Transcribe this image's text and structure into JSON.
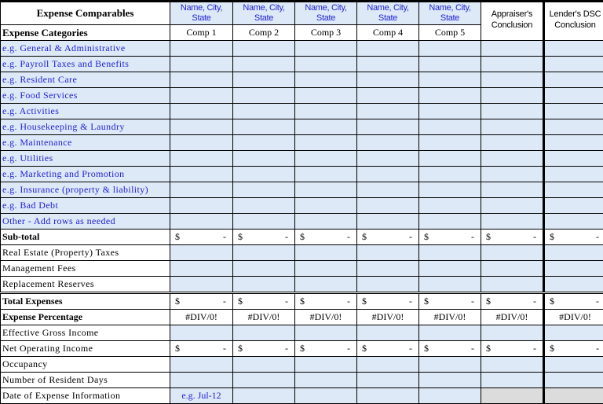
{
  "header": {
    "title": "Expense Comparables",
    "categories_label": "Expense Categories",
    "comp_names": [
      "Name, City, State",
      "Name, City, State",
      "Name, City, State",
      "Name, City, State",
      "Name, City, State"
    ],
    "comp_labels": [
      "Comp 1",
      "Comp 2",
      "Comp 3",
      "Comp 4",
      "Comp 5"
    ],
    "appraiser": "Appraiser's Conclusion",
    "lender": "Lender's DSC Conclusion"
  },
  "rows": [
    {
      "label": "e.g. General & Administrative",
      "style": "blue",
      "type": "input"
    },
    {
      "label": "e.g. Payroll Taxes and Benefits",
      "style": "blue",
      "type": "input"
    },
    {
      "label": "e.g. Resident Care",
      "style": "blue",
      "type": "input"
    },
    {
      "label": "e.g. Food Services",
      "style": "blue",
      "type": "input"
    },
    {
      "label": "e.g. Activities",
      "style": "blue",
      "type": "input"
    },
    {
      "label": "e.g. Housekeeping  & Laundry",
      "style": "blue",
      "type": "input"
    },
    {
      "label": "e.g. Maintenance",
      "style": "blue",
      "type": "input"
    },
    {
      "label": "e.g. Utilities",
      "style": "blue",
      "type": "input"
    },
    {
      "label": "e.g. Marketing and Promotion",
      "style": "blue",
      "type": "input"
    },
    {
      "label": "e.g. Insurance (property & liability)",
      "style": "blue",
      "type": "input"
    },
    {
      "label": "e.g. Bad Debt",
      "style": "blue",
      "type": "input"
    },
    {
      "label": "Other - Add rows as needed",
      "style": "blue",
      "type": "input"
    },
    {
      "label": "Sub-total",
      "style": "bold",
      "type": "dollar"
    },
    {
      "label": "Real Estate (Property) Taxes",
      "style": "plain",
      "type": "input"
    },
    {
      "label": "Management Fees",
      "style": "plain",
      "type": "input"
    },
    {
      "label": "Replacement Reserves",
      "style": "plain",
      "type": "input"
    },
    {
      "label": "Total Expenses",
      "style": "bold",
      "type": "dollar",
      "double": true
    },
    {
      "label": "Expense Percentage",
      "style": "bold",
      "type": "text",
      "value": "#DIV/0!"
    },
    {
      "label": "Effective Gross Income",
      "style": "plain",
      "type": "input"
    },
    {
      "label": "Net Operating Income",
      "style": "plain",
      "type": "dollar"
    },
    {
      "label": "Occupancy",
      "style": "plain",
      "type": "input"
    },
    {
      "label": "Number of Resident Days",
      "style": "plain",
      "type": "input"
    },
    {
      "label": "Date of Expense Information",
      "style": "plain",
      "type": "date",
      "first_value": "e.g. Jul-12"
    }
  ],
  "currency_symbol": "$",
  "empty_value": "-",
  "colors": {
    "input_fill": "#dde9f6",
    "hint_text": "#1f1fd6",
    "disabled_fill": "#dcdcdc"
  }
}
